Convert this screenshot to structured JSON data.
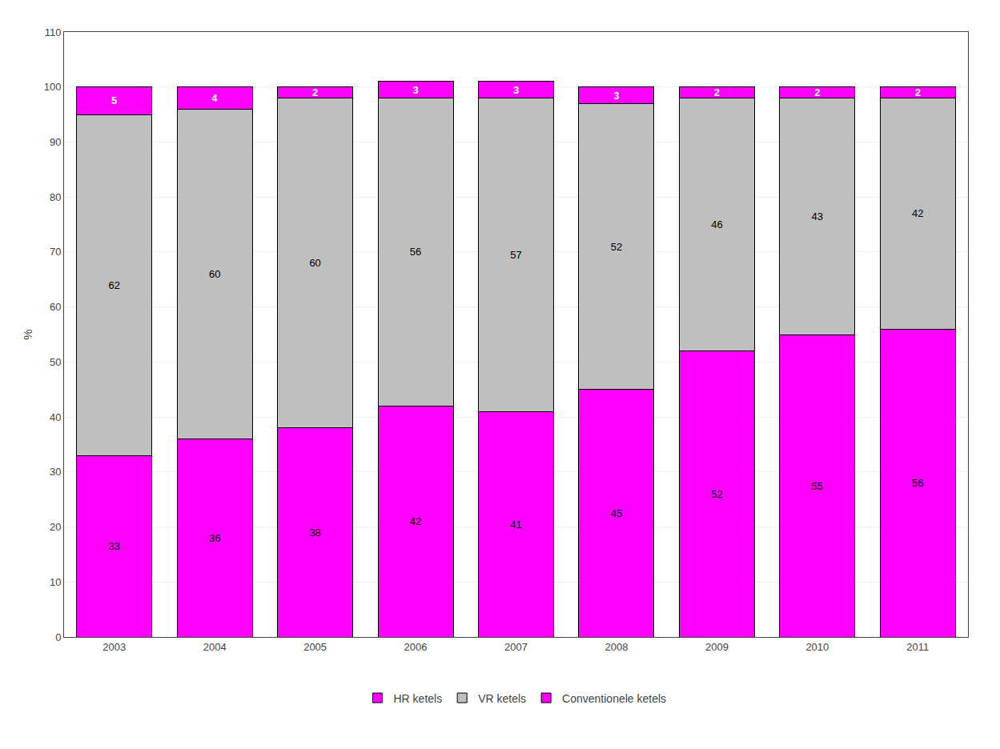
{
  "chart_data": {
    "type": "bar",
    "categories": [
      "2003",
      "2004",
      "2005",
      "2006",
      "2007",
      "2008",
      "2009",
      "2010",
      "2011"
    ],
    "series": [
      {
        "name": "Conventionele ketels",
        "color": "#FF00FF",
        "values": [
          33,
          36,
          38,
          42,
          41,
          45,
          52,
          55,
          56
        ]
      },
      {
        "name": "VR ketels",
        "color": "#BFBFBF",
        "values": [
          62,
          60,
          60,
          56,
          57,
          52,
          46,
          43,
          42
        ]
      },
      {
        "name": "HR ketels",
        "color": "#FF00FF",
        "values": [
          5,
          4,
          2,
          3,
          3,
          3,
          2,
          2,
          2
        ]
      }
    ],
    "ylabel": "%",
    "ylim": [
      0,
      110
    ],
    "yticks": [
      0,
      10,
      20,
      30,
      40,
      50,
      60,
      70,
      80,
      90,
      100,
      110
    ],
    "grid": true,
    "stacked": true,
    "data_labels": true,
    "legend": "bottom"
  }
}
